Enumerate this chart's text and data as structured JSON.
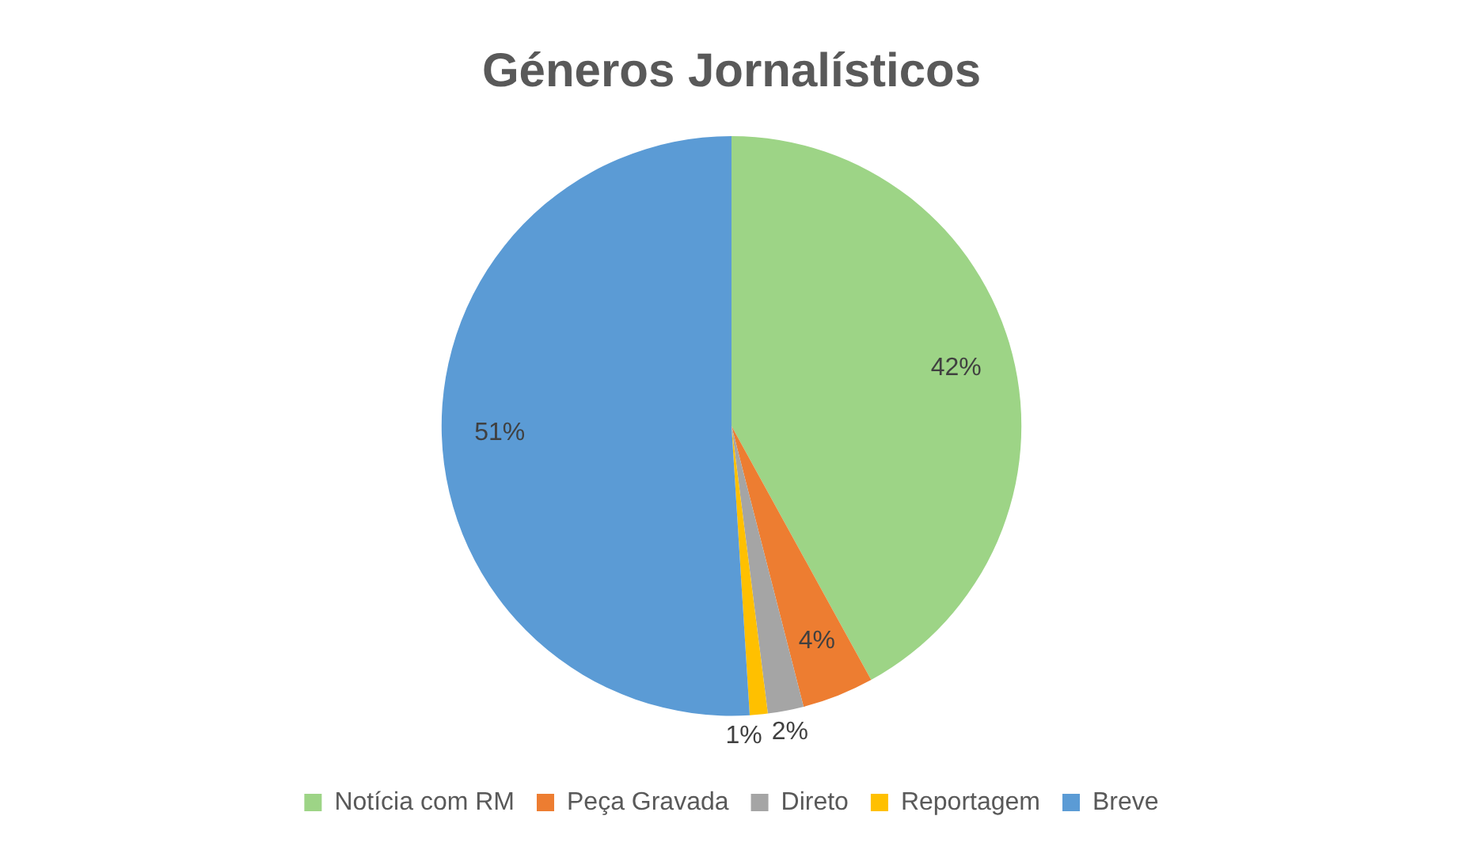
{
  "chart_data": {
    "type": "pie",
    "title": "Géneros Jornalísticos",
    "categories": [
      "Notícia com RM",
      "Peça Gravada",
      "Direto",
      "Reportagem",
      "Breve"
    ],
    "values": [
      42,
      4,
      2,
      1,
      51
    ],
    "colors": [
      "#9dd486",
      "#ed7d31",
      "#a5a5a5",
      "#ffc000",
      "#5b9bd5"
    ],
    "value_labels": [
      "42%",
      "4%",
      "2%",
      "1%",
      "51%"
    ],
    "legend": "bottom"
  }
}
